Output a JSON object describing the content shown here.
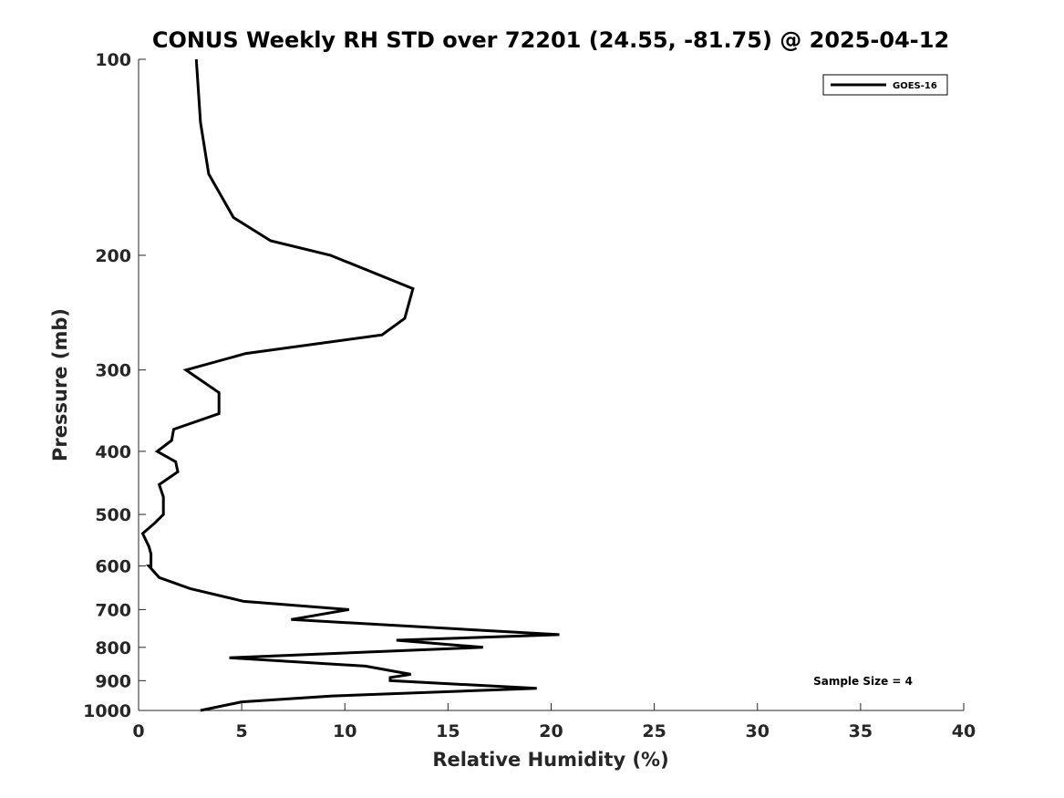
{
  "chart_data": {
    "type": "line",
    "title": "CONUS Weekly RH STD over 72201 (24.55, -81.75) @ 2025-04-12",
    "xlabel": "Relative Humidity (%)",
    "ylabel": "Pressure (mb)",
    "xlim": [
      0,
      40
    ],
    "ylim": [
      100,
      1000
    ],
    "yscale": "log",
    "yreversed": true,
    "grid": false,
    "xticks": [
      "0",
      "5",
      "10",
      "15",
      "20",
      "25",
      "30",
      "35",
      "40"
    ],
    "yticks": [
      "100",
      "200",
      "300",
      "400",
      "500",
      "600",
      "700",
      "800",
      "900",
      "1000"
    ],
    "legend": {
      "position": "top-right",
      "entries": [
        "GOES-16"
      ]
    },
    "annotation": "Sample Size = 4",
    "series": [
      {
        "name": "GOES-16",
        "x": [
          2.8,
          3.0,
          3.4,
          4.6,
          6.4,
          9.3,
          13.3,
          12.9,
          11.8,
          5.2,
          2.3,
          3.9,
          3.9,
          1.7,
          1.6,
          0.9,
          1.8,
          1.9,
          1.0,
          1.2,
          1.2,
          0.8,
          0.2,
          0.5,
          0.6,
          0.6,
          0.5,
          1.0,
          2.5,
          5.1,
          10.2,
          7.4,
          20.4,
          12.5,
          16.7,
          4.4,
          11.0,
          13.2,
          12.2,
          12.2,
          19.3,
          9.4,
          5.0,
          3.0
        ],
        "y": [
          100,
          125,
          150,
          175,
          190,
          200,
          225,
          250,
          265,
          283,
          300,
          325,
          350,
          370,
          385,
          400,
          415,
          430,
          450,
          470,
          500,
          515,
          535,
          560,
          575,
          600,
          600,
          625,
          650,
          680,
          700,
          725,
          765,
          780,
          800,
          830,
          855,
          880,
          890,
          900,
          925,
          950,
          970,
          1000
        ]
      }
    ]
  }
}
